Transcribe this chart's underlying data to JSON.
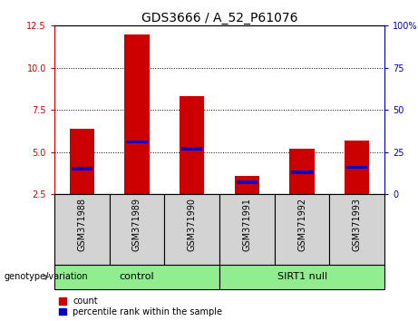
{
  "title": "GDS3666 / A_52_P61076",
  "samples": [
    "GSM371988",
    "GSM371989",
    "GSM371990",
    "GSM371991",
    "GSM371992",
    "GSM371993"
  ],
  "count_values": [
    6.4,
    12.0,
    8.3,
    3.6,
    5.2,
    5.7
  ],
  "percentile_values": [
    4.0,
    5.6,
    5.2,
    3.2,
    3.8,
    4.1
  ],
  "ylim_left": [
    2.5,
    12.5
  ],
  "yticks_left": [
    2.5,
    5.0,
    7.5,
    10.0,
    12.5
  ],
  "ylim_right": [
    0,
    100
  ],
  "yticks_right": [
    0,
    25,
    50,
    75,
    100
  ],
  "group_labels": [
    "control",
    "SIRT1 null"
  ],
  "group_color": "#90ee90",
  "bar_color": "#cc0000",
  "percentile_color": "#0000cc",
  "title_fontsize": 10,
  "tick_label_fontsize": 7,
  "axis_color_left": "#cc0000",
  "axis_color_right": "#0000cc",
  "xtick_bg_color": "#d3d3d3",
  "group_label_text": "genotype/variation",
  "legend_count": "count",
  "legend_percentile": "percentile rank within the sample"
}
